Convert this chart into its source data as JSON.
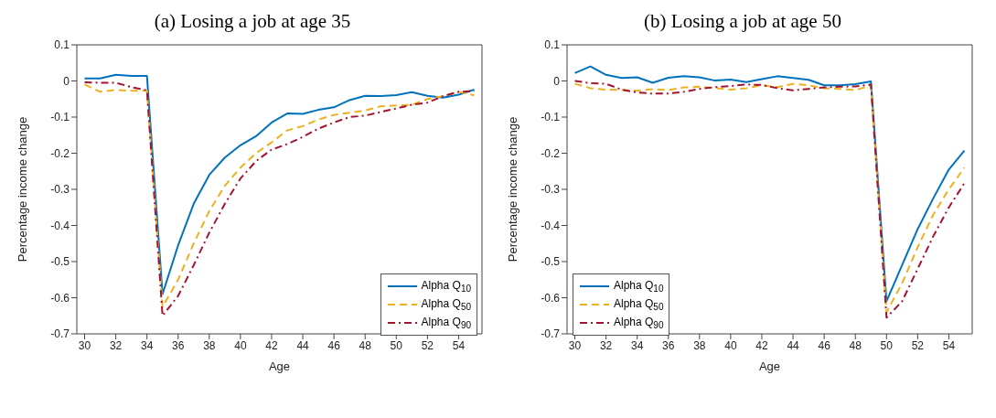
{
  "chart_data": [
    {
      "type": "line",
      "title": "(a) Losing a job at age 35",
      "xlabel": "Age",
      "ylabel": "Percentage income change",
      "x": [
        30,
        31,
        32,
        33,
        34,
        35,
        36,
        37,
        38,
        39,
        40,
        41,
        42,
        43,
        44,
        45,
        46,
        47,
        48,
        49,
        50,
        51,
        52,
        53,
        54,
        55
      ],
      "xlim": [
        29.5,
        55.5
      ],
      "xticks": [
        30,
        32,
        34,
        36,
        38,
        40,
        42,
        44,
        46,
        48,
        50,
        52,
        54
      ],
      "ylim": [
        -0.7,
        0.1
      ],
      "yticks": [
        -0.7,
        -0.6,
        -0.5,
        -0.4,
        -0.3,
        -0.2,
        -0.1,
        0,
        0.1
      ],
      "grid": false,
      "legend": "bottom right",
      "series": [
        {
          "name": "Alpha Q$_{10}$",
          "color": "#0072bd",
          "line_style": "solid",
          "values": [
            0.007,
            0.007,
            0.017,
            0.014,
            0.014,
            -0.59,
            -0.455,
            -0.34,
            -0.26,
            -0.212,
            -0.178,
            -0.153,
            -0.115,
            -0.09,
            -0.091,
            -0.08,
            -0.073,
            -0.053,
            -0.041,
            -0.042,
            -0.039,
            -0.031,
            -0.041,
            -0.046,
            -0.038,
            -0.024
          ]
        },
        {
          "name": "Alpha Q$_{50}$",
          "color": "#edb120",
          "line_style": "dashed",
          "values": [
            -0.01,
            -0.03,
            -0.025,
            -0.027,
            -0.027,
            -0.625,
            -0.55,
            -0.45,
            -0.36,
            -0.29,
            -0.24,
            -0.2,
            -0.17,
            -0.137,
            -0.125,
            -0.107,
            -0.094,
            -0.088,
            -0.082,
            -0.07,
            -0.068,
            -0.066,
            -0.05,
            -0.042,
            -0.03,
            -0.04
          ]
        },
        {
          "name": "Alpha Q$_{90}$",
          "color": "#a2142f",
          "line_style": "dashdot",
          "values": [
            -0.004,
            -0.005,
            -0.005,
            -0.017,
            -0.026,
            -0.65,
            -0.595,
            -0.51,
            -0.42,
            -0.34,
            -0.27,
            -0.222,
            -0.19,
            -0.175,
            -0.155,
            -0.132,
            -0.115,
            -0.1,
            -0.096,
            -0.086,
            -0.076,
            -0.066,
            -0.06,
            -0.042,
            -0.03,
            -0.028
          ]
        }
      ]
    },
    {
      "type": "line",
      "title": "(b) Losing a job at age 50",
      "xlabel": "Age",
      "ylabel": "Percentage income change",
      "x": [
        30,
        31,
        32,
        33,
        34,
        35,
        36,
        37,
        38,
        39,
        40,
        41,
        42,
        43,
        44,
        45,
        46,
        47,
        48,
        49,
        50,
        51,
        52,
        53,
        54,
        55
      ],
      "xlim": [
        29.5,
        55.5
      ],
      "xticks": [
        30,
        32,
        34,
        36,
        38,
        40,
        42,
        44,
        46,
        48,
        50,
        52,
        54
      ],
      "ylim": [
        -0.7,
        0.1
      ],
      "yticks": [
        -0.7,
        -0.6,
        -0.5,
        -0.4,
        -0.3,
        -0.2,
        -0.1,
        0,
        0.1
      ],
      "grid": false,
      "legend": "bottom left",
      "series": [
        {
          "name": "Alpha Q$_{10}$",
          "color": "#0072bd",
          "line_style": "solid",
          "values": [
            0.022,
            0.04,
            0.017,
            0.008,
            0.01,
            -0.005,
            0.009,
            0.013,
            0.01,
            0.001,
            0.004,
            -0.003,
            0.005,
            0.013,
            0.008,
            0.003,
            -0.012,
            -0.012,
            -0.009,
            -0.001,
            -0.61,
            -0.51,
            -0.41,
            -0.325,
            -0.245,
            -0.193
          ]
        },
        {
          "name": "Alpha Q$_{50}$",
          "color": "#edb120",
          "line_style": "dashed",
          "values": [
            -0.008,
            -0.02,
            -0.024,
            -0.025,
            -0.027,
            -0.023,
            -0.025,
            -0.018,
            -0.016,
            -0.02,
            -0.024,
            -0.02,
            -0.012,
            -0.017,
            -0.008,
            -0.012,
            -0.02,
            -0.022,
            -0.025,
            -0.013,
            -0.64,
            -0.56,
            -0.46,
            -0.37,
            -0.3,
            -0.24
          ]
        },
        {
          "name": "Alpha Q$_{90}$",
          "color": "#a2142f",
          "line_style": "dashdot",
          "values": [
            0,
            -0.006,
            -0.008,
            -0.024,
            -0.032,
            -0.035,
            -0.035,
            -0.03,
            -0.022,
            -0.017,
            -0.014,
            -0.01,
            -0.011,
            -0.02,
            -0.026,
            -0.022,
            -0.018,
            -0.016,
            -0.015,
            -0.01,
            -0.655,
            -0.61,
            -0.52,
            -0.43,
            -0.35,
            -0.283
          ]
        }
      ]
    }
  ]
}
